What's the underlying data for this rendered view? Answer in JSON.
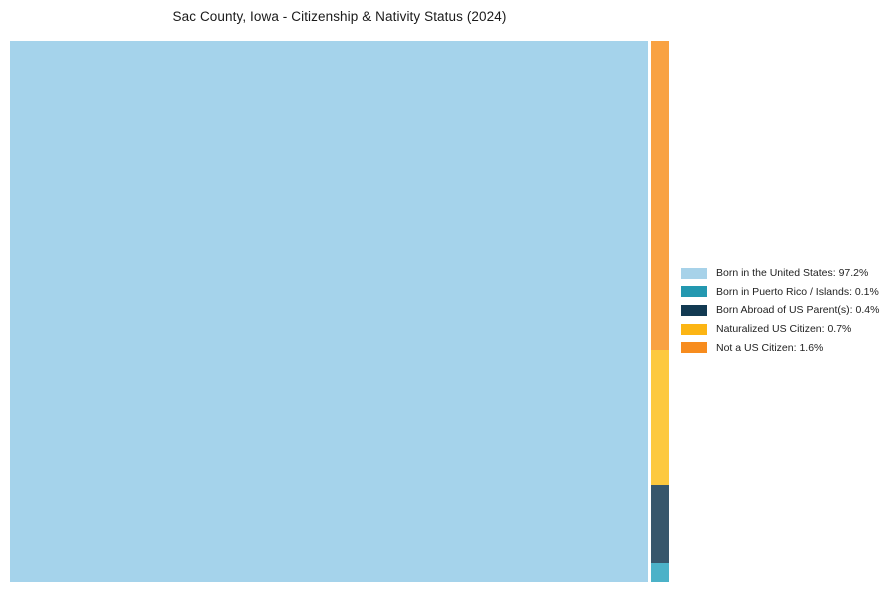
{
  "title": "Sac County, Iowa - Citizenship & Nativity Status (2024)",
  "chart_data": {
    "type": "treemap",
    "title": "Sac County, Iowa - Citizenship & Nativity Status (2024)",
    "categories": [
      "Born in the United States",
      "Born in Puerto Rico / Islands",
      "Born Abroad of US Parent(s)",
      "Naturalized US Citizen",
      "Not a US Citizen"
    ],
    "values": [
      97.2,
      0.1,
      0.4,
      0.7,
      1.6
    ],
    "unit": "%",
    "legend_position": "right",
    "legend_labels": [
      "Born in the United States: 97.2%",
      "Born in Puerto Rico / Islands: 0.1%",
      "Born Abroad of US Parent(s): 0.4%",
      "Naturalized US Citizen: 0.7%",
      "Not a US Citizen: 1.6%"
    ],
    "colors": {
      "chart": [
        "#A5D3EB",
        "#4CB2C8",
        "#37576C",
        "#FDC93F",
        "#F9A242"
      ],
      "legend": [
        "#A7D2E9",
        "#2398B0",
        "#123A52",
        "#FCB514",
        "#F78C1E"
      ]
    },
    "layout": {
      "main_segment": "Born in the United States",
      "column_order_top_to_bottom": [
        "Not a US Citizen",
        "Naturalized US Citizen",
        "Born Abroad of US Parent(s)",
        "Born in Puerto Rico / Islands"
      ],
      "grid": false,
      "background": "#ffffff"
    }
  }
}
